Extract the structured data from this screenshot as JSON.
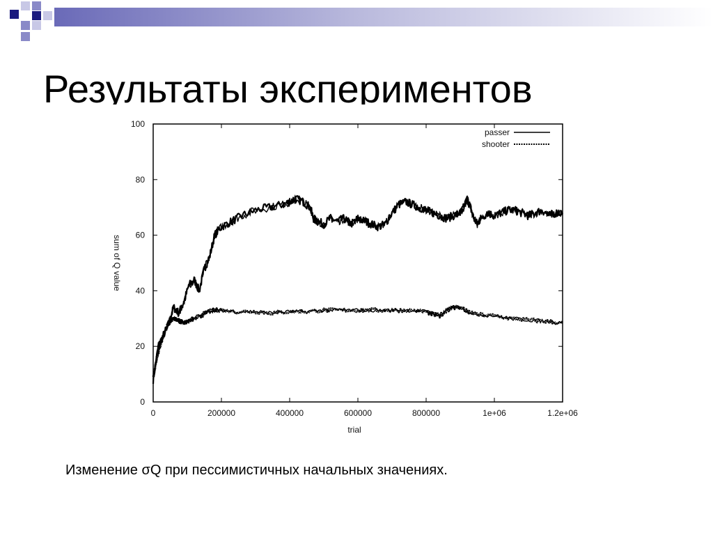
{
  "slide": {
    "title": "Результаты экспериментов",
    "caption": "Изменение σQ при пессимистичных начальных значениях."
  },
  "colors": {
    "accent_dark": "#1a1a7e",
    "accent_light": "#8a8ac8",
    "accent_pale": "#c8c8e6",
    "line": "#000000"
  },
  "chart_data": {
    "type": "line",
    "xlabel": "trial",
    "ylabel": "sum of Q value",
    "xlim": [
      0,
      1200000
    ],
    "ylim": [
      0,
      100
    ],
    "x_ticks": [
      0,
      200000,
      400000,
      600000,
      800000,
      1000000,
      1200000
    ],
    "x_tick_labels": [
      "0",
      "200000",
      "400000",
      "600000",
      "800000",
      "1e+06",
      "1.2e+06"
    ],
    "y_ticks": [
      0,
      20,
      40,
      60,
      80,
      100
    ],
    "y_tick_labels": [
      "0",
      "20",
      "40",
      "60",
      "80",
      "100"
    ],
    "legend_position": "top-right",
    "grid": false,
    "series": [
      {
        "name": "passer",
        "style": "solid",
        "x": [
          0,
          15000,
          30000,
          45000,
          60000,
          75000,
          90000,
          105000,
          120000,
          135000,
          150000,
          165000,
          180000,
          200000,
          230000,
          260000,
          300000,
          340000,
          380000,
          400000,
          420000,
          440000,
          460000,
          470000,
          480000,
          500000,
          520000,
          540000,
          560000,
          580000,
          600000,
          620000,
          640000,
          660000,
          680000,
          700000,
          720000,
          740000,
          760000,
          780000,
          800000,
          820000,
          840000,
          860000,
          880000,
          900000,
          910000,
          920000,
          930000,
          940000,
          950000,
          960000,
          980000,
          1000000,
          1020000,
          1040000,
          1060000,
          1080000,
          1100000,
          1120000,
          1140000,
          1160000,
          1180000,
          1200000
        ],
        "y": [
          8,
          20,
          24,
          28,
          34,
          32,
          36,
          42,
          44,
          40,
          48,
          52,
          60,
          63,
          65,
          67,
          69,
          70,
          71,
          72,
          73,
          72,
          70,
          66,
          65,
          64,
          66,
          65,
          66,
          64,
          66,
          65,
          64,
          63,
          64,
          68,
          71,
          72,
          71,
          70,
          69,
          68,
          67,
          66,
          67,
          68,
          70,
          73,
          70,
          66,
          64,
          66,
          68,
          67,
          68,
          69,
          69,
          68,
          67,
          68,
          69,
          67,
          68,
          68
        ]
      },
      {
        "name": "shooter",
        "style": "dotted",
        "x": [
          0,
          10000,
          20000,
          30000,
          40000,
          50000,
          60000,
          70000,
          80000,
          90000,
          100000,
          120000,
          140000,
          160000,
          180000,
          200000,
          250000,
          300000,
          350000,
          400000,
          450000,
          500000,
          550000,
          600000,
          650000,
          700000,
          750000,
          800000,
          820000,
          840000,
          860000,
          880000,
          900000,
          920000,
          950000,
          1000000,
          1050000,
          1100000,
          1150000,
          1200000
        ],
        "y": [
          9,
          15,
          20,
          24,
          27,
          29,
          30,
          29.5,
          29,
          28.5,
          29,
          30,
          31,
          32.5,
          33,
          33,
          32.5,
          32.5,
          32,
          32.5,
          32.5,
          33,
          33,
          33,
          33,
          33,
          33,
          32.5,
          31.5,
          31,
          33,
          34,
          34,
          32.5,
          31.5,
          31,
          30,
          29.5,
          29,
          28.5
        ]
      }
    ]
  }
}
